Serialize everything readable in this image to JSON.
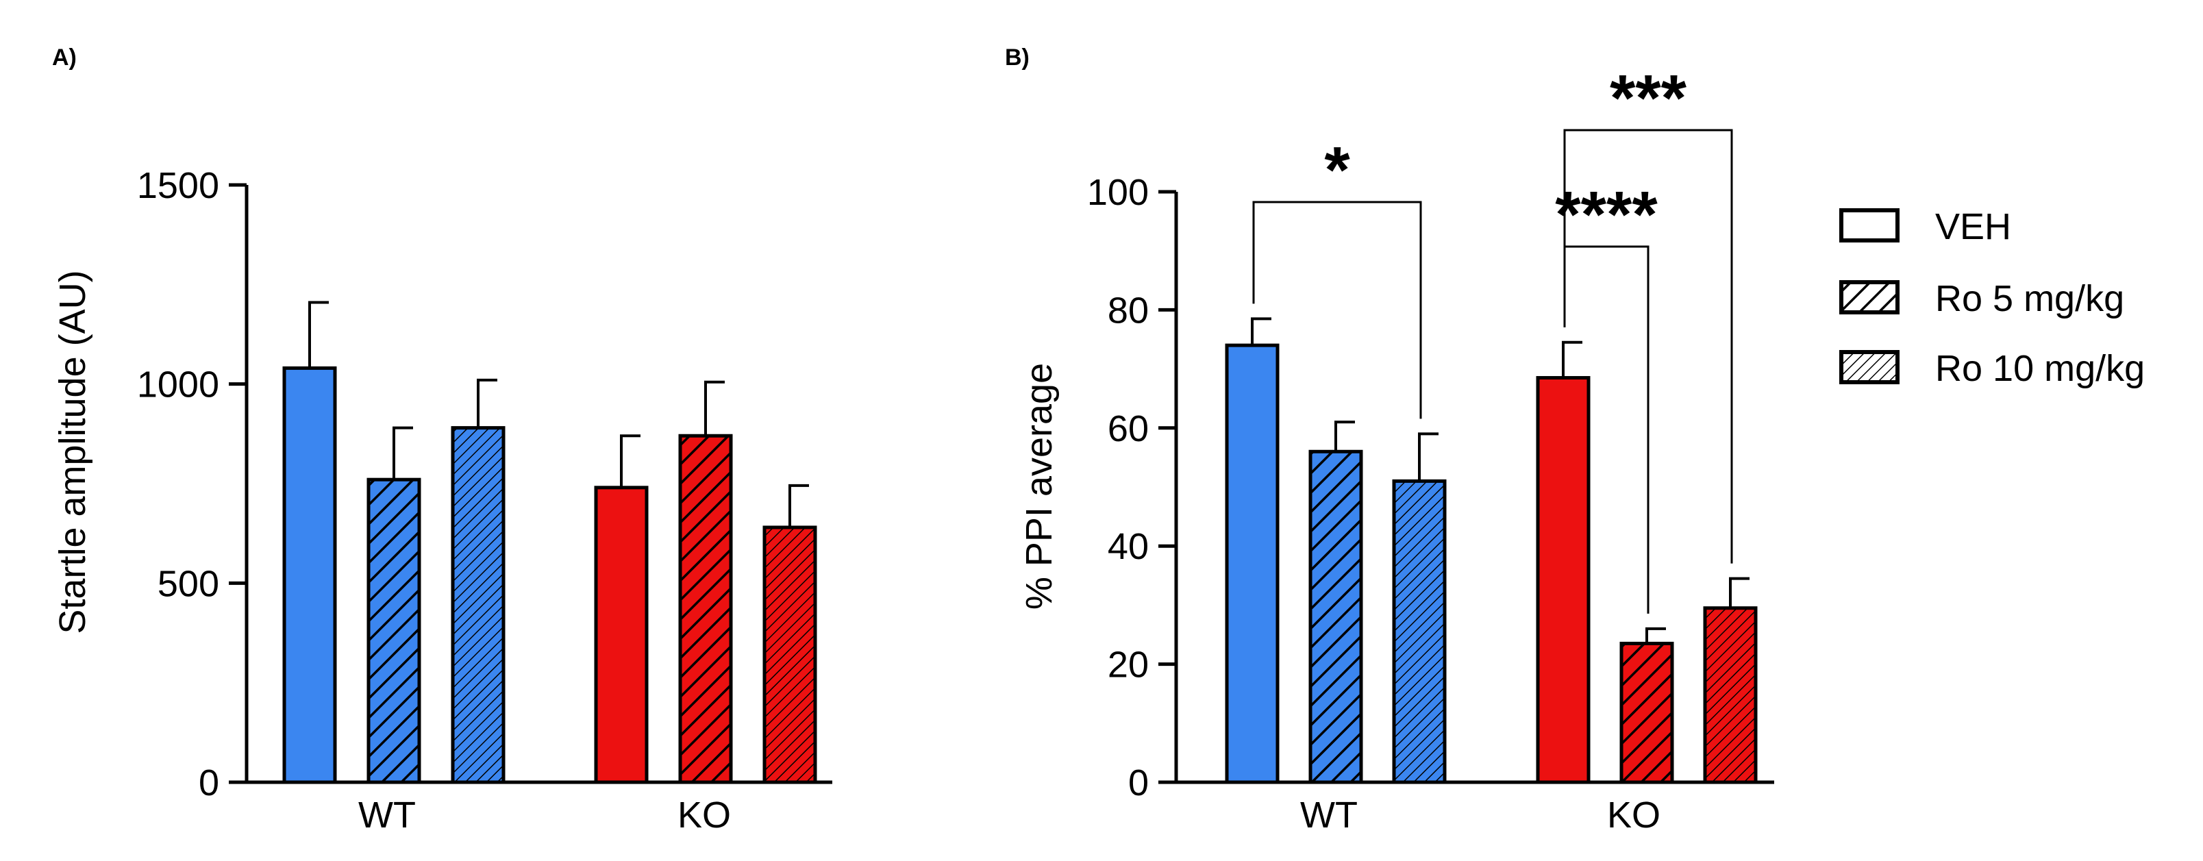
{
  "colors": {
    "WT": "#3b86f0",
    "KO": "#ec1111",
    "axis": "#000000"
  },
  "legend": [
    {
      "label": "VEH",
      "pattern": "none"
    },
    {
      "label": "Ro 5 mg/kg",
      "pattern": "wide"
    },
    {
      "label": "Ro 10 mg/kg",
      "pattern": "dense"
    }
  ],
  "chart_data": [
    {
      "panel": "A)",
      "type": "bar",
      "ylabel": "Startle amplitude (AU)",
      "ylim": [
        0,
        1500
      ],
      "yticks": [
        0,
        500,
        1000,
        1500
      ],
      "groups": [
        {
          "label": "WT",
          "color_key": "WT",
          "bars": [
            {
              "treatment": "VEH",
              "value": 1040,
              "error": 165
            },
            {
              "treatment": "Ro 5 mg/kg",
              "value": 760,
              "error": 130
            },
            {
              "treatment": "Ro 10 mg/kg",
              "value": 890,
              "error": 120
            }
          ]
        },
        {
          "label": "KO",
          "color_key": "KO",
          "bars": [
            {
              "treatment": "VEH",
              "value": 740,
              "error": 130
            },
            {
              "treatment": "Ro 5 mg/kg",
              "value": 870,
              "error": 135
            },
            {
              "treatment": "Ro 10 mg/kg",
              "value": 640,
              "error": 105
            }
          ]
        }
      ],
      "significance": []
    },
    {
      "panel": "B)",
      "type": "bar",
      "ylabel": "% PPI average",
      "ylim": [
        0,
        100
      ],
      "yticks": [
        0,
        20,
        40,
        60,
        80,
        100
      ],
      "groups": [
        {
          "label": "WT",
          "color_key": "WT",
          "bars": [
            {
              "treatment": "VEH",
              "value": 74,
              "error": 4.5
            },
            {
              "treatment": "Ro 5 mg/kg",
              "value": 56,
              "error": 5
            },
            {
              "treatment": "Ro 10 mg/kg",
              "value": 51,
              "error": 8
            }
          ]
        },
        {
          "label": "KO",
          "color_key": "KO",
          "bars": [
            {
              "treatment": "VEH",
              "value": 68.5,
              "error": 6
            },
            {
              "treatment": "Ro 5 mg/kg",
              "value": 23.5,
              "error": 2.5
            },
            {
              "treatment": "Ro 10 mg/kg",
              "value": 29.5,
              "error": 5
            }
          ]
        }
      ],
      "significance": [
        {
          "group": 0,
          "from": 0,
          "to": 2,
          "label": "*"
        },
        {
          "group": 1,
          "from": 0,
          "to": 1,
          "label": "****"
        },
        {
          "group": 1,
          "from": 0,
          "to": 2,
          "label": "***"
        }
      ]
    }
  ]
}
